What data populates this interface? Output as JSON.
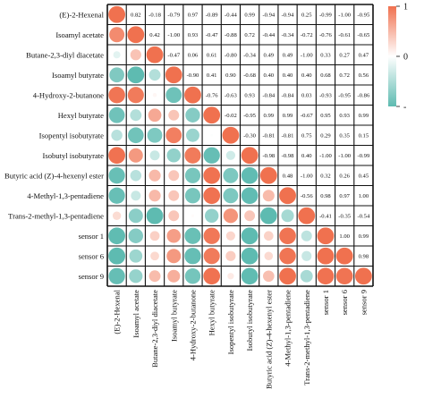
{
  "chart_data": {
    "type": "heatmap",
    "variables": [
      "(E)-2-Hexenal",
      "Isoamyl acetate",
      "Butane-2,3-diyl diacetate",
      "Isoamyl butyrate",
      "4-Hydroxy-2-butanone",
      "Hexyl butyrate",
      "Isopentyl isobutyrate",
      "Isobutyl isobutyrate",
      "Butyric acid (Z)-4-hexenyl ester",
      "4-Methyl-1,3-pentadiene",
      "Trans-2-methyl-1,3-pentadiene",
      "sensor 1",
      "sensor 6",
      "sensor 9"
    ],
    "matrix": [
      [
        1,
        0.82,
        -0.18,
        -0.79,
        0.97,
        -0.89,
        -0.44,
        0.99,
        -0.94,
        -0.94,
        0.25,
        -0.99,
        -1.0,
        -0.95
      ],
      [
        0.82,
        1,
        0.42,
        -1.0,
        0.93,
        -0.47,
        -0.88,
        0.72,
        -0.44,
        -0.34,
        -0.72,
        -0.76,
        -0.61,
        -0.65
      ],
      [
        -0.18,
        0.42,
        1,
        -0.47,
        0.06,
        0.61,
        -0.8,
        -0.34,
        0.49,
        0.49,
        -1.0,
        0.33,
        0.27,
        0.47
      ],
      [
        -0.79,
        -1.0,
        -0.47,
        1,
        -0.9,
        0.41,
        0.9,
        -0.68,
        0.4,
        0.4,
        0.4,
        0.68,
        0.72,
        0.56
      ],
      [
        0.97,
        0.93,
        0.06,
        -0.9,
        1,
        -0.76,
        -0.63,
        0.93,
        -0.84,
        -0.84,
        0.03,
        -0.93,
        -0.95,
        -0.86
      ],
      [
        -0.89,
        -0.47,
        0.61,
        0.41,
        -0.76,
        1,
        -0.02,
        -0.95,
        0.99,
        0.99,
        -0.67,
        0.95,
        0.93,
        0.99
      ],
      [
        -0.44,
        -0.88,
        -0.8,
        0.9,
        -0.63,
        -0.02,
        1,
        -0.3,
        -0.81,
        -0.81,
        0.75,
        0.29,
        0.35,
        0.15
      ],
      [
        0.99,
        0.72,
        -0.34,
        -0.68,
        0.93,
        -0.95,
        -0.3,
        1,
        -0.98,
        -0.98,
        0.4,
        -1.0,
        -1.0,
        -0.99
      ],
      [
        -0.94,
        -0.44,
        0.49,
        0.4,
        -0.84,
        0.99,
        -0.81,
        -0.98,
        1,
        0.48,
        -1.0,
        0.32,
        0.26,
        0.45
      ],
      [
        -0.94,
        -0.34,
        0.49,
        0.4,
        -0.84,
        0.99,
        -0.81,
        -0.98,
        0.48,
        1,
        -0.56,
        0.98,
        0.97,
        1.0
      ],
      [
        0.25,
        -0.72,
        -1.0,
        0.4,
        0.03,
        -0.67,
        0.75,
        0.4,
        -1.0,
        -0.56,
        1,
        -0.41,
        -0.35,
        -0.54
      ],
      [
        -0.99,
        -0.76,
        0.33,
        0.68,
        -0.93,
        0.95,
        0.29,
        -1.0,
        0.32,
        0.98,
        -0.41,
        1,
        1.0,
        0.99
      ],
      [
        -1.0,
        -0.61,
        0.27,
        0.72,
        -0.95,
        0.93,
        0.35,
        -1.0,
        0.26,
        0.97,
        -0.35,
        1.0,
        1,
        0.98
      ],
      [
        -0.95,
        -0.65,
        0.47,
        0.56,
        -0.86,
        0.99,
        0.15,
        -0.99,
        0.45,
        1.0,
        -0.54,
        0.99,
        0.98,
        1
      ]
    ],
    "upper_triangle": "numbers",
    "lower_triangle": "circles",
    "diagonal": "circles",
    "colors": {
      "positive": "#F0714F",
      "neutral": "#FFFFFF",
      "negative": "#5EBBB1"
    },
    "colorbar": {
      "ticks": [
        1,
        0,
        -1
      ],
      "tick_labels": [
        "1",
        "0",
        "-"
      ]
    }
  }
}
